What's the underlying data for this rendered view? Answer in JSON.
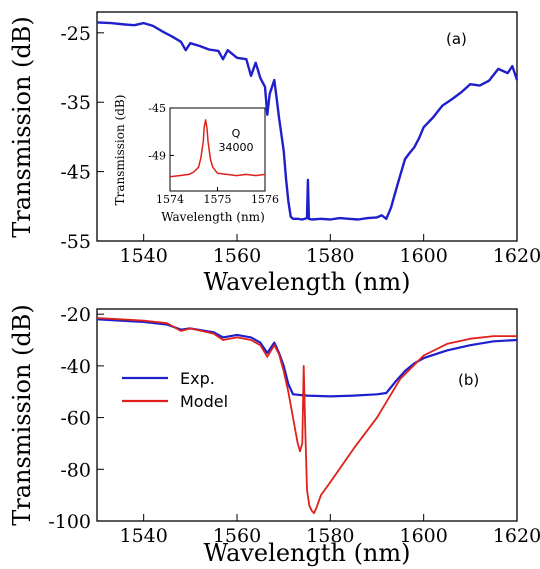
{
  "chart_data": [
    {
      "type": "line",
      "panel_label": "(a)",
      "xlabel": "Wavelength (nm)",
      "ylabel": "Transmission (dB)",
      "xlim": [
        1530,
        1620
      ],
      "ylim": [
        -55,
        -22
      ],
      "xticks": [
        1540,
        1560,
        1580,
        1600,
        1620
      ],
      "yticks": [
        -25,
        -35,
        -45,
        -55
      ],
      "grid": false,
      "color": "#1f1fcc",
      "series": [
        {
          "x": [
            1530,
            1533,
            1536,
            1538,
            1540,
            1542,
            1544,
            1546,
            1548,
            1549,
            1550,
            1552,
            1554,
            1556,
            1557,
            1558,
            1560,
            1562,
            1563,
            1564,
            1565,
            1566,
            1566.5,
            1567,
            1568,
            1568.5,
            1569,
            1570,
            1570.5,
            1571,
            1571.5,
            1572,
            1573,
            1574,
            1575,
            1575.2,
            1575.4,
            1576,
            1578,
            1580,
            1582,
            1584,
            1586,
            1588,
            1590,
            1591,
            1592,
            1593,
            1594,
            1595,
            1596,
            1597,
            1598,
            1599,
            1600,
            1602,
            1604,
            1606,
            1608,
            1610,
            1612,
            1614,
            1616,
            1618,
            1619,
            1620
          ],
          "y": [
            -23.5,
            -23.6,
            -23.8,
            -23.9,
            -23.6,
            -24.0,
            -24.8,
            -25.5,
            -26.3,
            -27.5,
            -26.5,
            -26.9,
            -27.4,
            -27.6,
            -28.8,
            -27.5,
            -28.6,
            -28.8,
            -31.2,
            -29.3,
            -31.5,
            -32.8,
            -36.8,
            -33.8,
            -31.8,
            -34.5,
            -37.2,
            -42.0,
            -46.0,
            -49.2,
            -51.5,
            -51.8,
            -51.8,
            -51.9,
            -51.7,
            -46.2,
            -51.8,
            -51.9,
            -51.8,
            -51.9,
            -51.7,
            -51.8,
            -51.9,
            -51.7,
            -51.6,
            -51.3,
            -51.8,
            -50.2,
            -47.8,
            -45.5,
            -43.2,
            -42.3,
            -41.5,
            -40.2,
            -38.6,
            -37.2,
            -35.5,
            -34.6,
            -33.6,
            -32.4,
            -32.6,
            -31.9,
            -30.2,
            -30.8,
            -29.8,
            -31.8
          ]
        }
      ],
      "inset": {
        "type": "line",
        "xlabel": "Wavelength (nm)",
        "ylabel": "Transmission (dB)",
        "xlim": [
          1574,
          1576
        ],
        "ylim": [
          -52,
          -45
        ],
        "xticks": [
          1574,
          1575,
          1576
        ],
        "yticks": [
          -45,
          -49
        ],
        "color": "#e0201b",
        "annotation_label": "Q",
        "annotation_value": "34000",
        "series": [
          {
            "x": [
              1574.0,
              1574.2,
              1574.4,
              1574.5,
              1574.6,
              1574.65,
              1574.7,
              1574.72,
              1574.75,
              1574.78,
              1574.8,
              1574.85,
              1574.9,
              1575.0,
              1575.2,
              1575.4,
              1575.6,
              1575.8,
              1576.0
            ],
            "y": [
              -50.8,
              -50.7,
              -50.6,
              -50.4,
              -50.0,
              -49.2,
              -47.8,
              -46.6,
              -46.0,
              -46.7,
              -47.8,
              -49.3,
              -50.0,
              -50.5,
              -50.6,
              -50.7,
              -50.6,
              -50.7,
              -50.6
            ]
          }
        ]
      }
    },
    {
      "type": "line",
      "panel_label": "(b)",
      "xlabel": "Wavelength (nm)",
      "ylabel": "Transmission (dB)",
      "xlim": [
        1530,
        1620
      ],
      "ylim": [
        -100,
        -18
      ],
      "xticks": [
        1540,
        1560,
        1580,
        1600,
        1620
      ],
      "yticks": [
        -20,
        -40,
        -60,
        -80,
        -100
      ],
      "grid": false,
      "legend_position": "center-left",
      "series": [
        {
          "name": "Exp.",
          "color": "#1f1fcc",
          "x": [
            1530,
            1535,
            1540,
            1545,
            1548,
            1550,
            1555,
            1557,
            1560,
            1563,
            1565,
            1566.5,
            1568,
            1569,
            1570,
            1571,
            1572,
            1575,
            1580,
            1585,
            1590,
            1592,
            1594,
            1596,
            1598,
            1600,
            1605,
            1610,
            1615,
            1620
          ],
          "y": [
            -22,
            -22.5,
            -23,
            -24,
            -26,
            -25.5,
            -27,
            -29,
            -28,
            -29,
            -31,
            -35,
            -31,
            -35,
            -40,
            -47,
            -51,
            -51.5,
            -51.8,
            -51.5,
            -51,
            -50.5,
            -46,
            -42,
            -39,
            -37,
            -34,
            -32,
            -30.5,
            -30
          ]
        },
        {
          "name": "Model",
          "color": "#e0201b",
          "x": [
            1530,
            1535,
            1540,
            1545,
            1548,
            1550,
            1555,
            1557,
            1560,
            1563,
            1565,
            1566.5,
            1568,
            1569,
            1570,
            1571,
            1572,
            1573,
            1573.5,
            1574,
            1574.3,
            1574.6,
            1575,
            1575.5,
            1576,
            1576.5,
            1577,
            1578,
            1580,
            1585,
            1590,
            1595,
            1600,
            1605,
            1610,
            1615,
            1620
          ],
          "y": [
            -21.5,
            -22,
            -22.5,
            -23.5,
            -26.5,
            -25.5,
            -27.5,
            -30,
            -29,
            -30,
            -32,
            -36.5,
            -32,
            -35.5,
            -42,
            -50,
            -60,
            -70,
            -73,
            -70,
            -40,
            -62,
            -88,
            -94,
            -96,
            -97,
            -95,
            -90,
            -85,
            -72,
            -60,
            -45,
            -36,
            -31.5,
            -29.5,
            -28.5,
            -28.5
          ]
        }
      ]
    }
  ]
}
